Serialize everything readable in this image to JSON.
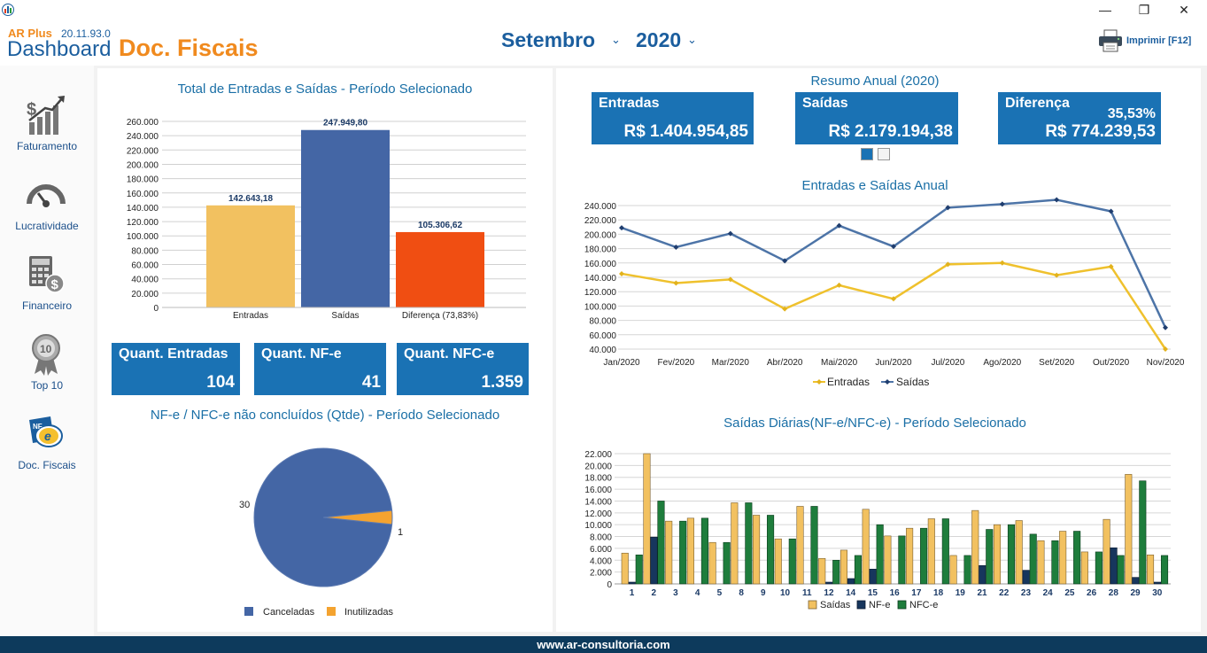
{
  "window": {
    "controls": {
      "minimize": "—",
      "restore": "❐",
      "close": "✕"
    }
  },
  "header": {
    "brand": "AR Plus",
    "version": "20.11.93.0",
    "title_prefix": "Dashboard",
    "title": "Doc. Fiscais",
    "month": "Setembro",
    "year": "2020",
    "print_label": "Imprimir [F12]"
  },
  "sidebar": {
    "items": [
      {
        "label": "Faturamento",
        "icon": "chart-growth-icon"
      },
      {
        "label": "Lucratividade",
        "icon": "gauge-icon"
      },
      {
        "label": "Financeiro",
        "icon": "calculator-icon"
      },
      {
        "label": "Top 10",
        "icon": "award-ribbon-icon"
      },
      {
        "label": "Doc. Fiscais",
        "icon": "nfe-icon"
      }
    ]
  },
  "tiles_left": [
    {
      "label": "Quant. Entradas",
      "value": "104"
    },
    {
      "label": "Quant. NF-e",
      "value": "41"
    },
    {
      "label": "Quant. NFC-e",
      "value": "1.359"
    }
  ],
  "resumo": {
    "title": "Resumo Anual (2020)",
    "tiles": [
      {
        "label": "Entradas",
        "value": "R$ 1.404.954,85"
      },
      {
        "label": "Saídas",
        "value": "R$ 2.179.194,38"
      },
      {
        "label": "Diferença",
        "value": "R$ 774.239,53",
        "pct": "35,53%"
      }
    ]
  },
  "footer": {
    "text": "www.ar-consultoria.com"
  },
  "colors": {
    "entradas": "#f2c160",
    "saidas": "#4466a5",
    "diferenca": "#f04e12",
    "tile": "#1a72b4",
    "line_saidas": "#4d74a7",
    "line_entradas": "#efc12d",
    "nfe": "#17365d",
    "nfce": "#1e7d3c"
  },
  "chart_data": [
    {
      "type": "bar",
      "title": "Total de Entradas e Saídas - Período Selecionado",
      "categories": [
        "Entradas",
        "Saídas",
        "Diferença (73,83%)"
      ],
      "values": [
        142643.18,
        247949.8,
        105306.62
      ],
      "value_labels": [
        "142.643,18",
        "247.949,80",
        "105.306,62"
      ],
      "ylim": [
        0,
        260000
      ],
      "yticks": [
        "0",
        "20.000",
        "40.000",
        "60.000",
        "80.000",
        "100.000",
        "120.000",
        "140.000",
        "160.000",
        "180.000",
        "200.000",
        "220.000",
        "240.000",
        "260.000"
      ]
    },
    {
      "type": "pie",
      "title": "NF-e / NFC-e não concluídos (Qtde) - Período Selecionado",
      "labels": [
        "Canceladas",
        "Inutilizadas"
      ],
      "values": [
        30,
        1
      ],
      "value_labels": [
        "30",
        "1"
      ]
    },
    {
      "type": "line",
      "title": "Entradas e Saídas Anual",
      "x": [
        "Jan/2020",
        "Fev/2020",
        "Mar/2020",
        "Abr/2020",
        "Mai/2020",
        "Jun/2020",
        "Jul/2020",
        "Ago/2020",
        "Set/2020",
        "Out/2020",
        "Nov/2020"
      ],
      "series": [
        {
          "name": "Entradas",
          "values": [
            145000,
            132000,
            137000,
            96000,
            129000,
            110000,
            158000,
            160000,
            143000,
            155000,
            40000
          ]
        },
        {
          "name": "Saídas",
          "values": [
            209000,
            182000,
            201000,
            163000,
            212000,
            183000,
            237000,
            242000,
            248000,
            232000,
            70000
          ]
        }
      ],
      "ylim": [
        40000,
        240000
      ],
      "yticks": [
        "40.000",
        "60.000",
        "80.000",
        "100.000",
        "120.000",
        "140.000",
        "160.000",
        "180.000",
        "200.000",
        "220.000",
        "240.000"
      ]
    },
    {
      "type": "bar",
      "title": "Saídas Diárias(NF-e/NFC-e) - Período Selecionado",
      "categories": [
        "1",
        "2",
        "3",
        "4",
        "5",
        "8",
        "9",
        "10",
        "11",
        "12",
        "14",
        "15",
        "16",
        "17",
        "18",
        "19",
        "21",
        "22",
        "23",
        "24",
        "25",
        "26",
        "28",
        "29",
        "30"
      ],
      "series": [
        {
          "name": "Saídas",
          "values": [
            5200,
            22000,
            10600,
            11100,
            7000,
            13700,
            11600,
            7600,
            13100,
            4300,
            5700,
            12600,
            8100,
            9400,
            11000,
            4800,
            12400,
            10000,
            10700,
            7300,
            8900,
            5400,
            10900,
            18500,
            4900
          ]
        },
        {
          "name": "NF-e",
          "values": [
            300,
            7900,
            0,
            0,
            0,
            0,
            0,
            0,
            0,
            300,
            900,
            2500,
            0,
            0,
            0,
            0,
            3100,
            0,
            2300,
            0,
            0,
            0,
            6100,
            1100,
            300
          ]
        },
        {
          "name": "NFC-e",
          "values": [
            4900,
            14000,
            10600,
            11100,
            7000,
            13700,
            11600,
            7600,
            13100,
            4000,
            4800,
            10000,
            8100,
            9400,
            11000,
            4800,
            9200,
            10000,
            8400,
            7300,
            8900,
            5400,
            4800,
            17400,
            4800
          ]
        }
      ],
      "ylim": [
        0,
        22000
      ],
      "yticks": [
        "0",
        "2.000",
        "4.000",
        "6.000",
        "8.000",
        "10.000",
        "12.000",
        "14.000",
        "16.000",
        "18.000",
        "20.000",
        "22.000"
      ]
    }
  ]
}
